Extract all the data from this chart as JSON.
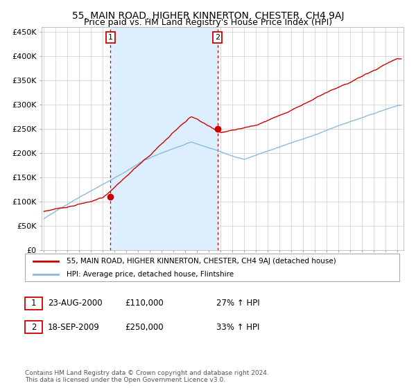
{
  "title": "55, MAIN ROAD, HIGHER KINNERTON, CHESTER, CH4 9AJ",
  "subtitle": "Price paid vs. HM Land Registry's House Price Index (HPI)",
  "title_fontsize": 10,
  "subtitle_fontsize": 9,
  "ylabel_ticks": [
    "£0",
    "£50K",
    "£100K",
    "£150K",
    "£200K",
    "£250K",
    "£300K",
    "£350K",
    "£400K",
    "£450K"
  ],
  "ytick_values": [
    0,
    50000,
    100000,
    150000,
    200000,
    250000,
    300000,
    350000,
    400000,
    450000
  ],
  "ylim": [
    0,
    460000
  ],
  "xlim_start": 1994.8,
  "xlim_end": 2025.5,
  "purchase1_date": 2000.645,
  "purchase1_price": 110000,
  "purchase1_label": "1",
  "purchase2_date": 2009.712,
  "purchase2_price": 250000,
  "purchase2_label": "2",
  "shade_color": "#ddeeff",
  "hpi_color": "#88bbdd",
  "price_color": "#cc0000",
  "grid_color": "#cccccc",
  "background_color": "#ffffff",
  "legend_entry1": "55, MAIN ROAD, HIGHER KINNERTON, CHESTER, CH4 9AJ (detached house)",
  "legend_entry2": "HPI: Average price, detached house, Flintshire",
  "annotation1_date": "23-AUG-2000",
  "annotation1_price": "£110,000",
  "annotation1_hpi": "27% ↑ HPI",
  "annotation2_date": "18-SEP-2009",
  "annotation2_price": "£250,000",
  "annotation2_hpi": "33% ↑ HPI",
  "footer1": "Contains HM Land Registry data © Crown copyright and database right 2024.",
  "footer2": "This data is licensed under the Open Government Licence v3.0."
}
